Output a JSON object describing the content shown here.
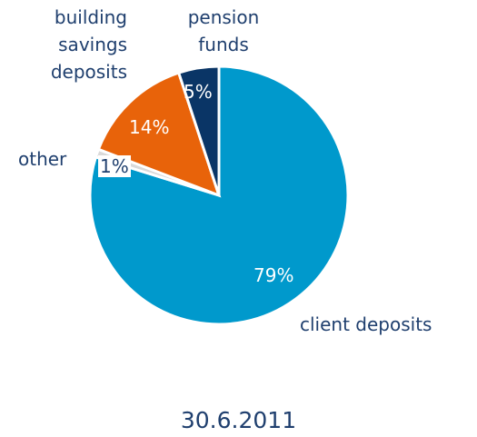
{
  "chart_data": {
    "type": "pie",
    "title": "30.6.2011",
    "categories": [
      "client deposits",
      "other",
      "building savings deposits",
      "pension funds"
    ],
    "values": [
      79,
      1,
      14,
      5
    ],
    "value_labels": [
      "79%",
      "1%",
      "14%",
      "5%"
    ],
    "colors": [
      "#0099cc",
      "#d9d9d9",
      "#e8630a",
      "#0a3566"
    ]
  }
}
